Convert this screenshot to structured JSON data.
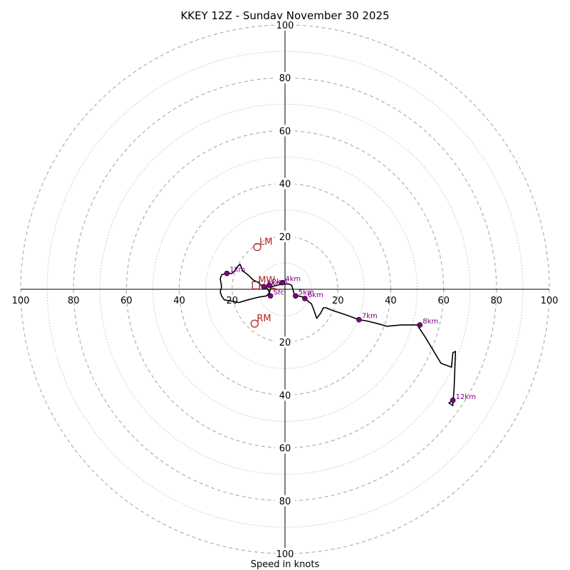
{
  "chart_data": {
    "type": "hodograph",
    "title": "KKEY 12Z - Sunday November 30 2025",
    "xlabel": "Speed in knots",
    "range": [
      -100,
      100
    ],
    "rings": [
      10,
      20,
      30,
      40,
      50,
      60,
      70,
      80,
      90,
      100
    ],
    "major_rings": [
      20,
      40,
      60,
      80,
      100
    ],
    "x_ticks": [
      {
        "value": -100,
        "label": "100"
      },
      {
        "value": -80,
        "label": "80"
      },
      {
        "value": -60,
        "label": "60"
      },
      {
        "value": -40,
        "label": "40"
      },
      {
        "value": -20,
        "label": "20"
      },
      {
        "value": 20,
        "label": "20"
      },
      {
        "value": 40,
        "label": "40"
      },
      {
        "value": 60,
        "label": "60"
      },
      {
        "value": 80,
        "label": "80"
      },
      {
        "value": 100,
        "label": "100"
      }
    ],
    "y_ticks": [
      {
        "value": 100,
        "label": "100"
      },
      {
        "value": 80,
        "label": "80"
      },
      {
        "value": 60,
        "label": "60"
      },
      {
        "value": 40,
        "label": "40"
      },
      {
        "value": 20,
        "label": "20"
      },
      {
        "value": -20,
        "label": "20"
      },
      {
        "value": -40,
        "label": "40"
      },
      {
        "value": -60,
        "label": "60"
      },
      {
        "value": -80,
        "label": "80"
      },
      {
        "value": -100,
        "label": "100"
      }
    ],
    "hodograph_trace": [
      [
        -5.5,
        -2.5
      ],
      [
        -6,
        -1
      ],
      [
        -6.5,
        0
      ],
      [
        -7.5,
        1
      ],
      [
        -9,
        1.5
      ],
      [
        -10,
        2.5
      ],
      [
        -12,
        3.5
      ],
      [
        -13.5,
        5
      ],
      [
        -16,
        7
      ],
      [
        -17,
        9.5
      ],
      [
        -18,
        8.5
      ],
      [
        -19,
        7
      ],
      [
        -20,
        6
      ],
      [
        -22,
        6
      ],
      [
        -24,
        5.5
      ],
      [
        -24.5,
        4
      ],
      [
        -24,
        1
      ],
      [
        -24.5,
        -1
      ],
      [
        -24,
        -2.5
      ],
      [
        -23,
        -4
      ],
      [
        -20,
        -4.5
      ],
      [
        -17.5,
        -5
      ],
      [
        -14,
        -4
      ],
      [
        -10,
        -3
      ],
      [
        -7,
        -2.5
      ],
      [
        -6,
        -1.5
      ],
      [
        -5.5,
        0
      ],
      [
        -5,
        1
      ],
      [
        -3,
        1.5
      ],
      [
        -1,
        2
      ],
      [
        1.5,
        2
      ],
      [
        2.5,
        1.5
      ],
      [
        3,
        0
      ],
      [
        3.5,
        -2
      ],
      [
        5,
        -2.5
      ],
      [
        7,
        -3
      ],
      [
        8,
        -4
      ],
      [
        10,
        -5.5
      ],
      [
        11,
        -8
      ],
      [
        12,
        -11
      ],
      [
        13.5,
        -9
      ],
      [
        14.5,
        -7
      ],
      [
        15.5,
        -7
      ],
      [
        18,
        -8
      ],
      [
        21,
        -9
      ],
      [
        24,
        -10
      ],
      [
        28,
        -11.5
      ],
      [
        31,
        -12
      ],
      [
        35,
        -13
      ],
      [
        38.5,
        -14
      ],
      [
        44,
        -13.5
      ],
      [
        50,
        -13.5
      ],
      [
        53,
        -18
      ],
      [
        56,
        -23
      ],
      [
        59,
        -28
      ],
      [
        63,
        -29.5
      ],
      [
        63.5,
        -24
      ],
      [
        64.5,
        -23.5
      ],
      [
        64,
        -37
      ],
      [
        63.5,
        -44
      ],
      [
        62,
        -43
      ],
      [
        63.5,
        -42
      ]
    ],
    "height_markers": [
      {
        "label": "Sfc",
        "u": -5.5,
        "v": -2.5
      },
      {
        "label": "1km",
        "u": -22,
        "v": 6
      },
      {
        "label": "2km",
        "u": -6,
        "v": 1.5
      },
      {
        "label": "3km",
        "u": -8,
        "v": 1
      },
      {
        "label": "4km",
        "u": -1,
        "v": 2.5
      },
      {
        "label": "5km",
        "u": 4,
        "v": -2.5
      },
      {
        "label": "6km",
        "u": 7.5,
        "v": -3.5
      },
      {
        "label": "7km",
        "u": 28,
        "v": -11.5
      },
      {
        "label": "8km",
        "u": 51,
        "v": -13.5
      },
      {
        "label": "12km",
        "u": 63.5,
        "v": -42
      }
    ],
    "storm_motions": [
      {
        "label": "LM",
        "u": -10.5,
        "v": 16
      },
      {
        "label": "RM",
        "u": -11.5,
        "v": -13
      },
      {
        "label": "MW",
        "u": -11,
        "v": 1.5
      }
    ],
    "shear_vector": {
      "from": [
        -9,
        1.5
      ],
      "to": [
        -3,
        0
      ]
    },
    "colors": {
      "trace": "#000000",
      "markers": "#800080",
      "storm_motion": "#b22222",
      "rings": "#b0b0b0",
      "axes": "#000000"
    }
  }
}
